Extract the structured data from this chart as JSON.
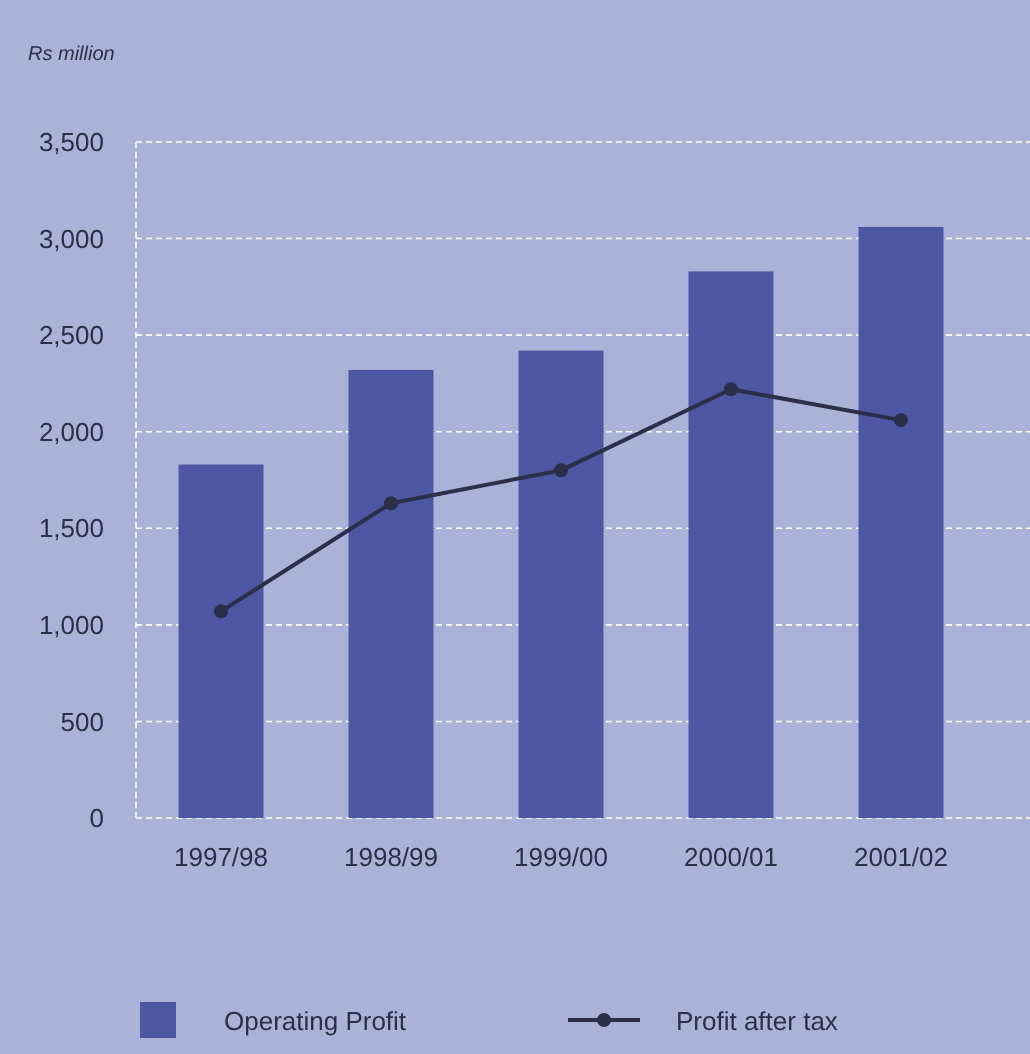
{
  "chart_data": {
    "type": "bar",
    "ylabel": "Rs million",
    "categories": [
      "1997/98",
      "1998/99",
      "1999/00",
      "2000/01",
      "2001/02"
    ],
    "series": [
      {
        "name": "Operating Profit",
        "color": "#4d57a3",
        "values": [
          1830,
          2320,
          2420,
          2830,
          3060
        ]
      },
      {
        "name": "Profit after tax",
        "type": "line",
        "color": "#2b3048",
        "marker": "circle",
        "values": [
          1070,
          1630,
          1800,
          2220,
          2060
        ]
      }
    ],
    "ylim": [
      0,
      3500
    ],
    "yticks": [
      {
        "value": 0,
        "label": "0"
      },
      {
        "value": 500,
        "label": "500"
      },
      {
        "value": 1000,
        "label": "1,000"
      },
      {
        "value": 1500,
        "label": "1,500"
      },
      {
        "value": 2000,
        "label": "2,000"
      },
      {
        "value": 2500,
        "label": "2,500"
      },
      {
        "value": 3000,
        "label": "3,000"
      },
      {
        "value": 3500,
        "label": "3,500"
      }
    ],
    "grid": "y",
    "legend": "bottom"
  }
}
